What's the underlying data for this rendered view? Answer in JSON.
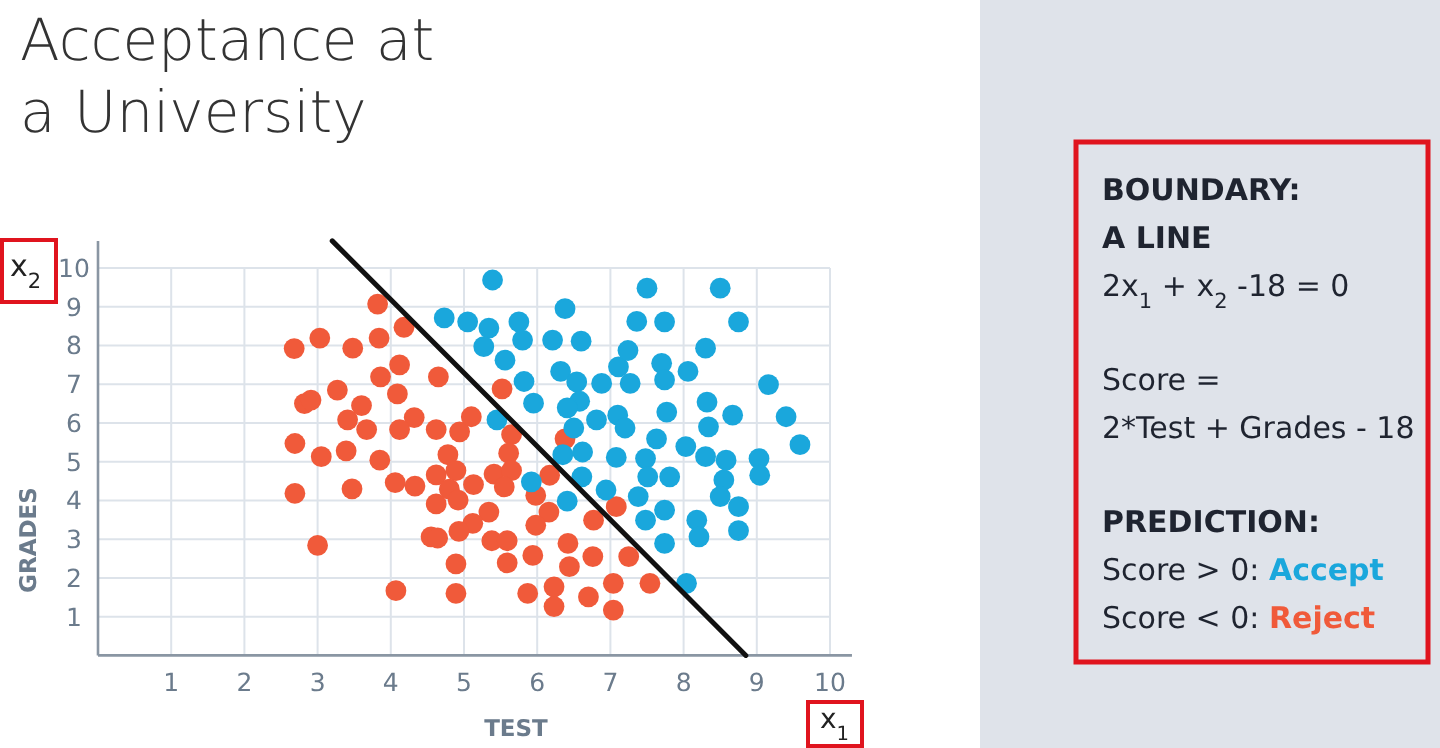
{
  "chart_data": [
    {
      "type": "scatter",
      "title": "Acceptance at a University",
      "xlabel": "TEST",
      "ylabel": "GRADES",
      "annotations": [
        "x$_{1}$",
        "x$_{2}$"
      ],
      "xlim": [
        0,
        10.3
      ],
      "ylim": [
        0,
        10.7
      ],
      "xticks": [
        1,
        2,
        3,
        4,
        5,
        6,
        7,
        8,
        9,
        10
      ],
      "yticks": [
        1,
        2,
        3,
        4,
        5,
        6,
        7,
        8,
        9,
        10
      ],
      "grid": true,
      "series": [
        {
          "color": "#f05a3a",
          "marker": "circle",
          "x": [
            2.68,
            3.03,
            3.48,
            3.82,
            3.84,
            4.18,
            4.12,
            3.86,
            4.65,
            3.27,
            4.09,
            2.82,
            2.91,
            3.6,
            3.41,
            3.67,
            4.32,
            4.12,
            4.62,
            4.94,
            5.1,
            5.52,
            2.69,
            3.05,
            3.39,
            3.85,
            4.78,
            4.62,
            4.89,
            5.41,
            5.65,
            5.61,
            5.65,
            2.69,
            3.47,
            4.06,
            4.33,
            4.8,
            4.92,
            5.13,
            5.55,
            4.62,
            5.34,
            5.12,
            4.55,
            4.64,
            4.93,
            5.38,
            5.59,
            3.0,
            4.89,
            5.59,
            4.07,
            4.89,
            6.38,
            5.98,
            6.16,
            6.17,
            5.98,
            5.94,
            6.42,
            6.44,
            6.77,
            6.76,
            7.08,
            7.25,
            7.04,
            7.54,
            6.23,
            6.23,
            5.87,
            6.7,
            7.04
          ],
          "values": [
            7.92,
            8.19,
            7.93,
            9.07,
            8.19,
            8.47,
            7.5,
            7.19,
            7.19,
            6.85,
            6.75,
            6.5,
            6.59,
            6.45,
            6.08,
            5.83,
            6.14,
            5.83,
            5.83,
            5.77,
            6.16,
            6.88,
            5.47,
            5.13,
            5.28,
            5.04,
            5.18,
            4.66,
            4.77,
            4.68,
            5.7,
            5.22,
            4.77,
            4.18,
            4.3,
            4.46,
            4.37,
            4.29,
            4.01,
            4.41,
            4.35,
            3.91,
            3.7,
            3.41,
            3.06,
            3.03,
            3.2,
            2.96,
            2.96,
            2.84,
            2.36,
            2.39,
            1.67,
            1.6,
            5.59,
            4.13,
            3.7,
            4.65,
            3.36,
            2.58,
            2.89,
            2.29,
            3.49,
            2.55,
            3.84,
            2.55,
            1.86,
            1.86,
            1.77,
            1.26,
            1.6,
            1.51,
            1.17
          ]
        },
        {
          "color": "#1aa7dc",
          "marker": "circle",
          "x": [
            5.39,
            4.73,
            5.05,
            5.34,
            5.27,
            5.56,
            5.45,
            5.75,
            5.8,
            6.21,
            6.38,
            6.6,
            5.82,
            6.32,
            6.54,
            5.95,
            6.58,
            6.41,
            6.5,
            6.88,
            6.81,
            7.11,
            7.27,
            7.24,
            7.36,
            7.5,
            7.74,
            8.5,
            8.75,
            8.3,
            7.7,
            7.74,
            8.06,
            7.77,
            7.1,
            7.2,
            7.63,
            8.32,
            8.67,
            8.34,
            8.03,
            6.35,
            6.62,
            7.08,
            7.48,
            7.51,
            7.81,
            8.3,
            8.58,
            8.55,
            9.03,
            9.04,
            9.16,
            9.4,
            9.59,
            5.92,
            6.61,
            6.94,
            6.41,
            7.38,
            7.48,
            7.74,
            8.5,
            8.75,
            8.18,
            8.21,
            8.75,
            7.74,
            8.04
          ],
          "values": [
            9.69,
            8.71,
            8.61,
            8.45,
            7.97,
            7.62,
            6.08,
            8.61,
            8.14,
            8.14,
            8.95,
            8.11,
            7.07,
            7.33,
            7.06,
            6.51,
            6.56,
            6.39,
            5.87,
            7.02,
            6.08,
            7.45,
            7.02,
            7.87,
            8.62,
            9.48,
            8.61,
            9.48,
            8.61,
            7.93,
            7.54,
            7.11,
            7.33,
            6.28,
            6.2,
            5.87,
            5.59,
            6.54,
            6.2,
            5.9,
            5.39,
            5.18,
            5.25,
            5.11,
            5.08,
            4.61,
            4.61,
            5.13,
            5.04,
            4.53,
            5.08,
            4.65,
            6.99,
            6.16,
            5.44,
            4.48,
            4.61,
            4.27,
            3.98,
            4.1,
            3.49,
            3.75,
            4.1,
            3.84,
            3.49,
            3.06,
            3.22,
            2.89,
            1.86
          ]
        },
        {
          "type": "line",
          "marker": "none",
          "color": "#111111",
          "x": [
            3.2,
            8.85
          ],
          "values": [
            10.7,
            0
          ]
        }
      ]
    },
    {
      "type": "other",
      "annotations": [
        "BOUNDARY:",
        "A LINE",
        "2x$_{1}$ + x$_{2}$ -18 = 0",
        "Score =",
        "2*Test + Grades - 18",
        "PREDICTION:",
        "Score > 0: ",
        "Score < 0: "
      ],
      "series": [
        {
          "name": "Accept",
          "color": "#1aa7dc"
        },
        {
          "name": "Reject",
          "color": "#f05a3a"
        }
      ]
    }
  ]
}
